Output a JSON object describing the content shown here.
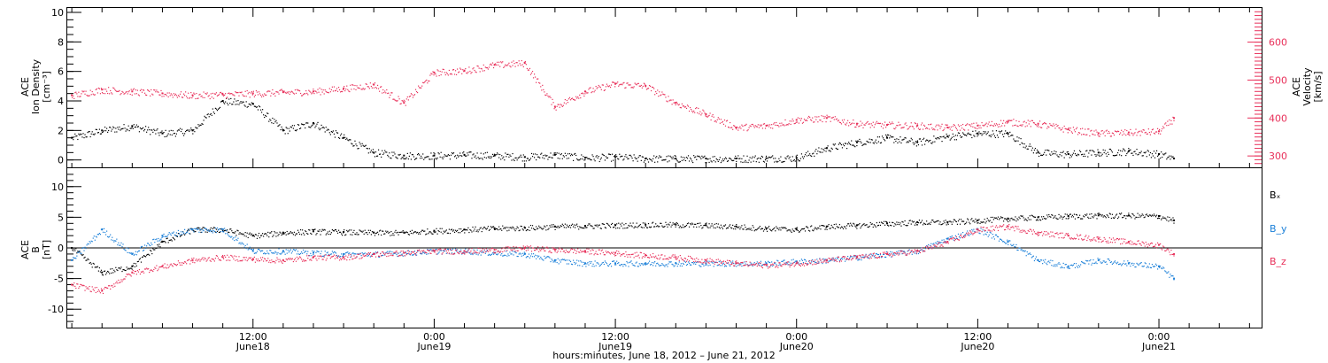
{
  "colors": {
    "black": "#000000",
    "pink": "#e8305a",
    "blue": "#1a7fd8"
  },
  "xaxis": {
    "title": "hours:minutes, June 18, 2012 – June 21, 2012",
    "ticks": [
      {
        "hour": 12,
        "time": "12:00",
        "date": "June18"
      },
      {
        "hour": 24,
        "time": "0:00",
        "date": "June19"
      },
      {
        "hour": 36,
        "time": "12:00",
        "date": "June19"
      },
      {
        "hour": 48,
        "time": "0:00",
        "date": "June20"
      },
      {
        "hour": 60,
        "time": "12:00",
        "date": "June20"
      },
      {
        "hour": 72,
        "time": "0:00",
        "date": "June21"
      }
    ],
    "range_hours": [
      -0.3,
      78.8
    ]
  },
  "chart_data": [
    {
      "type": "scatter",
      "panel": "top",
      "ylabel_left": [
        "ACE",
        "Ion Density",
        "[cm⁻³]"
      ],
      "ylabel_right": [
        "ACE",
        "Velocity",
        "[km/s]"
      ],
      "ylim_left": [
        -0.5,
        10.3
      ],
      "ylim_right": [
        270,
        690
      ],
      "left_ticks": [
        "0",
        "2",
        "4",
        "6",
        "8",
        "10"
      ],
      "right_ticks": [
        "300",
        "400",
        "500",
        "600"
      ],
      "series": [
        {
          "axis": "left",
          "color": "#000000",
          "points": [
            [
              0,
              1.5
            ],
            [
              2,
              2
            ],
            [
              4,
              2.3
            ],
            [
              6,
              1.8
            ],
            [
              8,
              2
            ],
            [
              10,
              4
            ],
            [
              12,
              3.8
            ],
            [
              14,
              2
            ],
            [
              16,
              2.5
            ],
            [
              18,
              1.5
            ],
            [
              20,
              0.5
            ],
            [
              22,
              0.3
            ],
            [
              24,
              0.3
            ],
            [
              26,
              0.35
            ],
            [
              28,
              0.3
            ],
            [
              30,
              0.2
            ],
            [
              32,
              0.35
            ],
            [
              34,
              0.15
            ],
            [
              36,
              0.2
            ],
            [
              38,
              0.1
            ],
            [
              40,
              0.1
            ],
            [
              42,
              0.1
            ],
            [
              44,
              0.1
            ],
            [
              46,
              0.12
            ],
            [
              48,
              0.15
            ],
            [
              50,
              0.8
            ],
            [
              52,
              1.2
            ],
            [
              54,
              1.5
            ],
            [
              56,
              1.2
            ],
            [
              58,
              1.6
            ],
            [
              60,
              1.8
            ],
            [
              62,
              1.8
            ],
            [
              64,
              0.5
            ],
            [
              66,
              0.4
            ],
            [
              68,
              0.5
            ],
            [
              70,
              0.6
            ],
            [
              72,
              0.4
            ],
            [
              73,
              0.1
            ]
          ]
        },
        {
          "axis": "right",
          "color": "#e8305a",
          "points": [
            [
              0,
              460
            ],
            [
              2,
              475
            ],
            [
              4,
              470
            ],
            [
              6,
              465
            ],
            [
              8,
              460
            ],
            [
              10,
              462
            ],
            [
              12,
              465
            ],
            [
              14,
              468
            ],
            [
              16,
              470
            ],
            [
              18,
              478
            ],
            [
              20,
              488
            ],
            [
              22,
              440
            ],
            [
              24,
              520
            ],
            [
              26,
              525
            ],
            [
              28,
              540
            ],
            [
              30,
              545
            ],
            [
              32,
              430
            ],
            [
              34,
              470
            ],
            [
              36,
              490
            ],
            [
              38,
              485
            ],
            [
              40,
              440
            ],
            [
              42,
              410
            ],
            [
              44,
              375
            ],
            [
              46,
              380
            ],
            [
              48,
              395
            ],
            [
              50,
              400
            ],
            [
              52,
              385
            ],
            [
              54,
              382
            ],
            [
              56,
              380
            ],
            [
              58,
              375
            ],
            [
              60,
              380
            ],
            [
              62,
              390
            ],
            [
              64,
              385
            ],
            [
              66,
              370
            ],
            [
              68,
              360
            ],
            [
              70,
              362
            ],
            [
              72,
              365
            ],
            [
              73,
              400
            ]
          ]
        }
      ]
    },
    {
      "type": "scatter",
      "panel": "bottom",
      "ylabel": [
        "ACE",
        "B",
        "[nT]"
      ],
      "ylim": [
        -13,
        13
      ],
      "y_ticks": [
        "-10",
        "-5",
        "0",
        "5",
        "10"
      ],
      "series": [
        {
          "name": "Bx",
          "color": "#000000",
          "points": [
            [
              0,
              0
            ],
            [
              2,
              -4
            ],
            [
              4,
              -3
            ],
            [
              6,
              1
            ],
            [
              8,
              3
            ],
            [
              10,
              3
            ],
            [
              12,
              2
            ],
            [
              14,
              2.5
            ],
            [
              16,
              2.7
            ],
            [
              18,
              2.6
            ],
            [
              20,
              2.5
            ],
            [
              22,
              2.5
            ],
            [
              24,
              2.8
            ],
            [
              26,
              3
            ],
            [
              28,
              3.2
            ],
            [
              30,
              3.3
            ],
            [
              32,
              3.5
            ],
            [
              34,
              3.6
            ],
            [
              36,
              3.7
            ],
            [
              38,
              3.8
            ],
            [
              40,
              3.8
            ],
            [
              42,
              3.7
            ],
            [
              44,
              3.5
            ],
            [
              46,
              3.2
            ],
            [
              48,
              3
            ],
            [
              50,
              3.5
            ],
            [
              52,
              3.7
            ],
            [
              54,
              4
            ],
            [
              56,
              4.2
            ],
            [
              58,
              4.2
            ],
            [
              60,
              4.5
            ],
            [
              62,
              4.8
            ],
            [
              64,
              5
            ],
            [
              66,
              5.2
            ],
            [
              68,
              5.3
            ],
            [
              70,
              5.3
            ],
            [
              72,
              5.2
            ],
            [
              73,
              4.5
            ]
          ]
        },
        {
          "name": "By",
          "color": "#1a7fd8",
          "points": [
            [
              0,
              -2
            ],
            [
              2,
              3
            ],
            [
              4,
              -1
            ],
            [
              6,
              2
            ],
            [
              8,
              3
            ],
            [
              10,
              3
            ],
            [
              12,
              -0.5
            ],
            [
              14,
              -0.5
            ],
            [
              16,
              -0.8
            ],
            [
              18,
              -1
            ],
            [
              20,
              -1
            ],
            [
              22,
              -0.8
            ],
            [
              24,
              -0.5
            ],
            [
              26,
              -0.5
            ],
            [
              28,
              -0.8
            ],
            [
              30,
              -1
            ],
            [
              32,
              -2
            ],
            [
              34,
              -2.5
            ],
            [
              36,
              -2.5
            ],
            [
              38,
              -2.5
            ],
            [
              40,
              -2.5
            ],
            [
              42,
              -2.5
            ],
            [
              44,
              -2.5
            ],
            [
              46,
              -2.5
            ],
            [
              48,
              -2.2
            ],
            [
              50,
              -2
            ],
            [
              52,
              -1.5
            ],
            [
              54,
              -1
            ],
            [
              56,
              -0.5
            ],
            [
              58,
              1.5
            ],
            [
              60,
              3
            ],
            [
              62,
              1
            ],
            [
              64,
              -2
            ],
            [
              66,
              -3
            ],
            [
              68,
              -2
            ],
            [
              70,
              -2.5
            ],
            [
              72,
              -3
            ],
            [
              73,
              -5
            ]
          ]
        },
        {
          "name": "Bz",
          "color": "#e8305a",
          "points": [
            [
              0,
              -6
            ],
            [
              2,
              -7
            ],
            [
              4,
              -4
            ],
            [
              6,
              -3
            ],
            [
              8,
              -2
            ],
            [
              10,
              -1.5
            ],
            [
              12,
              -1.8
            ],
            [
              14,
              -2
            ],
            [
              16,
              -1.5
            ],
            [
              18,
              -1.5
            ],
            [
              20,
              -1
            ],
            [
              22,
              -0.8
            ],
            [
              24,
              -0.5
            ],
            [
              26,
              -0.5
            ],
            [
              28,
              -0.3
            ],
            [
              30,
              0
            ],
            [
              32,
              -0.3
            ],
            [
              34,
              -0.5
            ],
            [
              36,
              -0.8
            ],
            [
              38,
              -1.2
            ],
            [
              40,
              -1.5
            ],
            [
              42,
              -2
            ],
            [
              44,
              -2.5
            ],
            [
              46,
              -2.8
            ],
            [
              48,
              -2.5
            ],
            [
              50,
              -2
            ],
            [
              52,
              -1.5
            ],
            [
              54,
              -1
            ],
            [
              56,
              -0.5
            ],
            [
              58,
              1
            ],
            [
              60,
              3
            ],
            [
              62,
              3.5
            ],
            [
              64,
              2.5
            ],
            [
              66,
              2
            ],
            [
              68,
              1.5
            ],
            [
              70,
              1
            ],
            [
              72,
              0.5
            ],
            [
              73,
              -1
            ]
          ]
        }
      ]
    }
  ],
  "legend": {
    "bx": "Bₓ",
    "by": "B_y",
    "bz": "B_z"
  }
}
